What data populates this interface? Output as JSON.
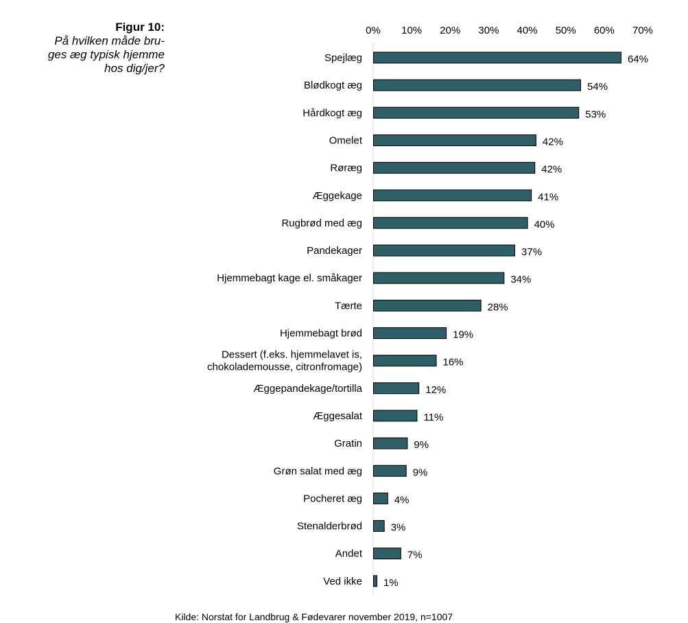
{
  "figure": {
    "label": "Figur 10:",
    "question": "På hvilken måde bru- ges æg typisk hjemme hos dig/jer?",
    "question_lines": [
      "På hvilken måde bru-",
      "ges æg typisk hjemme",
      "hos dig/jer?"
    ]
  },
  "source": "Kilde: Norstat for Landbrug & Fødevarer november 2019, n=1007",
  "chart_data": {
    "type": "bar",
    "orientation": "horizontal",
    "categories": [
      "Spejlæg",
      "Blødkogt æg",
      "Hårdkogt æg",
      "Omelet",
      "Røræg",
      "Æggekage",
      "Rugbrød med æg",
      "Pandekager",
      "Hjemmebagt kage el. småkager",
      "Tærte",
      "Hjemmebagt brød",
      "Dessert (f.eks. hjemmelavet is, chokolademousse, citronfromage)",
      "Æggepandekage/tortilla",
      "Æggesalat",
      "Gratin",
      "Grøn salat med æg",
      "Pocheret æg",
      "Stenalderbrød",
      "Andet",
      "Ved ikke"
    ],
    "category_lines": [
      [
        "Spejlæg"
      ],
      [
        "Blødkogt æg"
      ],
      [
        "Hårdkogt æg"
      ],
      [
        "Omelet"
      ],
      [
        "Røræg"
      ],
      [
        "Æggekage"
      ],
      [
        "Rugbrød med æg"
      ],
      [
        "Pandekager"
      ],
      [
        "Hjemmebagt kage el. småkager"
      ],
      [
        "Tærte"
      ],
      [
        "Hjemmebagt brød"
      ],
      [
        "Dessert (f.eks. hjemmelavet is,",
        "chokolademousse, citronfromage)"
      ],
      [
        "Æggepandekage/tortilla"
      ],
      [
        "Æggesalat"
      ],
      [
        "Gratin"
      ],
      [
        "Grøn salat med æg"
      ],
      [
        "Pocheret æg"
      ],
      [
        "Stenalderbrød"
      ],
      [
        "Andet"
      ],
      [
        "Ved ikke"
      ]
    ],
    "values": [
      64.3,
      53.8,
      53.3,
      42.2,
      41.9,
      41.0,
      40.0,
      36.7,
      33.9,
      27.9,
      18.9,
      16.3,
      11.8,
      11.3,
      8.8,
      8.5,
      3.7,
      2.8,
      7.1,
      0.9
    ],
    "value_labels": [
      "64%",
      "54%",
      "53%",
      "42%",
      "42%",
      "41%",
      "40%",
      "37%",
      "34%",
      "28%",
      "19%",
      "16%",
      "12%",
      "11%",
      "9%",
      "9%",
      "4%",
      "3%",
      "7%",
      "1%"
    ],
    "x_ticks": [
      0,
      10,
      20,
      30,
      40,
      50,
      60,
      70
    ],
    "x_tick_labels": [
      "0%",
      "10%",
      "20%",
      "30%",
      "40%",
      "50%",
      "60%",
      "70%"
    ],
    "xlim": [
      0,
      70
    ],
    "axis_position": "top",
    "grid": false,
    "bar_color": "#2e5e66",
    "bar_edge_color": "#000000"
  }
}
